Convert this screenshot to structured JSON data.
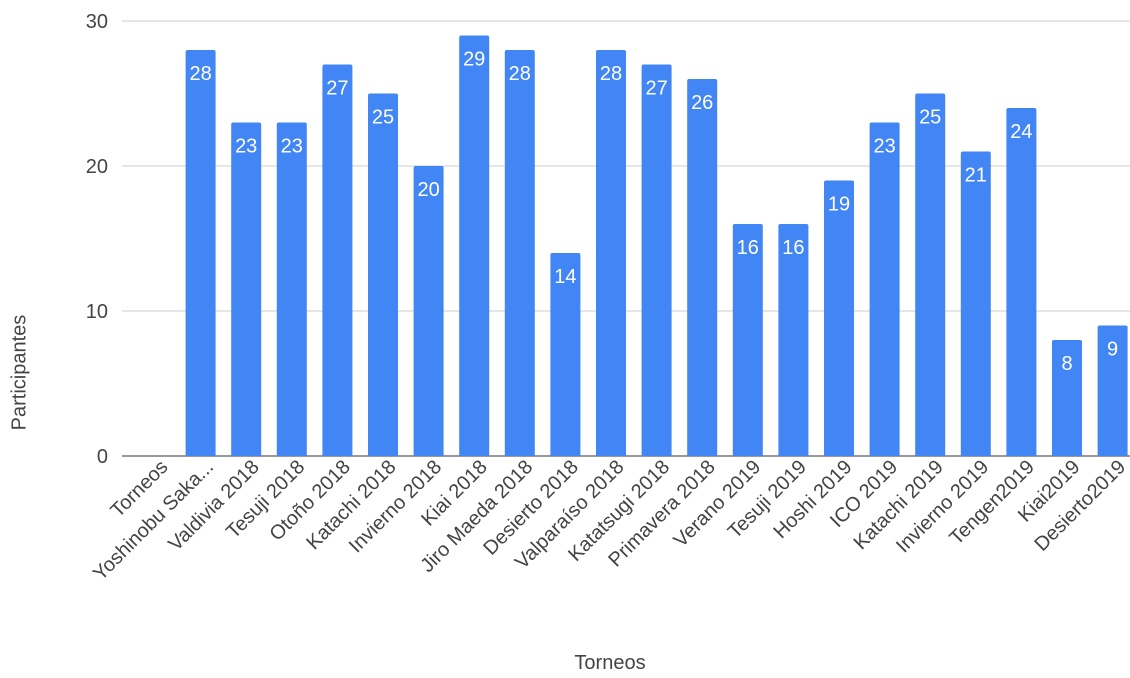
{
  "chart_data": {
    "type": "bar",
    "title": "",
    "xlabel": "Torneos",
    "ylabel": "Participantes",
    "ylim": [
      0,
      30
    ],
    "yticks": [
      0,
      10,
      20,
      30
    ],
    "grid": true,
    "bar_color": "#4285f4",
    "categories": [
      "Torneos",
      "Yoshinobu Saka...",
      "Valdivia 2018",
      "Tesuji 2018",
      "Otoño 2018",
      "Katachi 2018",
      "Invierno 2018",
      "Kiai 2018",
      "Jiro Maeda 2018",
      "Desierto 2018",
      "Valparaíso 2018",
      "Katatsugi 2018",
      "Primavera 2018",
      "Verano 2019",
      "Tesuji 2019",
      "Hoshi 2019",
      "ICO 2019",
      "Katachi 2019",
      "Invierno 2019",
      "Tengen2019",
      "Kiai2019",
      "Desierto2019"
    ],
    "values": [
      null,
      28,
      23,
      23,
      27,
      25,
      20,
      29,
      28,
      14,
      28,
      27,
      26,
      16,
      16,
      19,
      23,
      25,
      21,
      24,
      8,
      9
    ]
  }
}
